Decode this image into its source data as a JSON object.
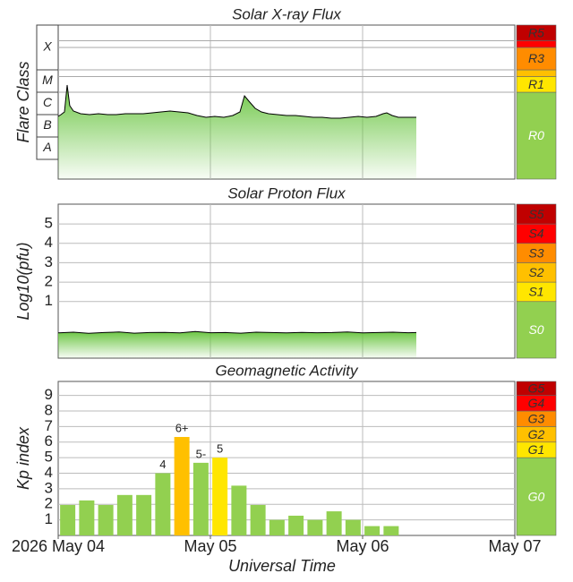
{
  "chart_data": [
    {
      "type": "line",
      "title": "Solar X-ray Flux",
      "ylabel": "Flare Class",
      "area": true,
      "threshold_lines": true,
      "xlim": [
        0,
        3
      ],
      "xgrid": [
        1,
        2
      ],
      "ylim": [
        -8.88,
        -2
      ],
      "color": "#000000",
      "fill_color": "#6cc644",
      "class_bands": [
        {
          "label": "A",
          "from": -8,
          "to": -7
        },
        {
          "label": "B",
          "from": -7,
          "to": -6
        },
        {
          "label": "C",
          "from": -6,
          "to": -5
        },
        {
          "label": "M",
          "from": -5,
          "to": -4
        },
        {
          "label": "X",
          "from": -4,
          "to": -2
        }
      ],
      "scale": [
        {
          "label": "R0",
          "from": -8.88,
          "to": -5,
          "color": "#92d050"
        },
        {
          "label": "R1",
          "from": -5,
          "to": -4.3,
          "color": "#ffe600"
        },
        {
          "label": null,
          "from": -4.3,
          "to": -4,
          "color": "#ffc000"
        },
        {
          "label": "R3",
          "from": -4,
          "to": -3,
          "color": "#ff8c00"
        },
        {
          "label": null,
          "from": -3,
          "to": -2.7,
          "color": "#ff0000"
        },
        {
          "label": "R5",
          "from": -2.7,
          "to": -2,
          "color": "#c00000"
        }
      ],
      "x": [
        0,
        0.018,
        0.041,
        0.059,
        0.076,
        0.1,
        0.147,
        0.206,
        0.265,
        0.324,
        0.382,
        0.441,
        0.5,
        0.559,
        0.618,
        0.676,
        0.735,
        0.794,
        0.853,
        0.912,
        0.971,
        1.029,
        1.088,
        1.147,
        1.194,
        1.224,
        1.253,
        1.294,
        1.335,
        1.382,
        1.441,
        1.5,
        1.559,
        1.618,
        1.676,
        1.735,
        1.794,
        1.853,
        1.912,
        1.971,
        2.029,
        2.088,
        2.135,
        2.159,
        2.194,
        2.235,
        2.294,
        2.353
      ],
      "values": [
        -6.08,
        -6.0,
        -5.88,
        -4.68,
        -5.6,
        -5.84,
        -5.96,
        -6.0,
        -5.96,
        -6.0,
        -6.0,
        -5.96,
        -5.96,
        -5.96,
        -5.92,
        -5.88,
        -5.84,
        -5.88,
        -5.92,
        -6.04,
        -6.12,
        -6.08,
        -6.12,
        -6.04,
        -5.88,
        -5.16,
        -5.4,
        -5.72,
        -5.88,
        -5.96,
        -6.0,
        -6.04,
        -6.04,
        -6.08,
        -6.12,
        -6.12,
        -6.16,
        -6.16,
        -6.12,
        -6.08,
        -6.12,
        -6.08,
        -5.96,
        -5.92,
        -6.04,
        -6.12,
        -6.12,
        -6.12
      ]
    },
    {
      "type": "line",
      "title": "Solar Proton Flux",
      "ylabel": "Log10(pfu)",
      "area": true,
      "xlim": [
        0,
        3
      ],
      "xgrid": [
        1,
        2
      ],
      "ylim": [
        -1.92,
        6.02
      ],
      "yticks": [
        1,
        2,
        3,
        4,
        5
      ],
      "grid": true,
      "color": "#000000",
      "fill_color": "#6cc644",
      "scale": [
        {
          "label": "S0",
          "from": -1.92,
          "to": 1,
          "color": "#92d050"
        },
        {
          "label": "S1",
          "from": 1,
          "to": 2,
          "color": "#ffe600"
        },
        {
          "label": "S2",
          "from": 2,
          "to": 3,
          "color": "#ffc000"
        },
        {
          "label": "S3",
          "from": 3,
          "to": 4,
          "color": "#ff8c00"
        },
        {
          "label": "S4",
          "from": 4,
          "to": 5,
          "color": "#ff0000"
        },
        {
          "label": "S5",
          "from": 5,
          "to": 6.02,
          "color": "#c00000"
        }
      ],
      "x": [
        0,
        0.1,
        0.2,
        0.3,
        0.4,
        0.5,
        0.6,
        0.7,
        0.8,
        0.9,
        1.0,
        1.1,
        1.2,
        1.3,
        1.4,
        1.5,
        1.6,
        1.7,
        1.8,
        1.9,
        2.0,
        2.1,
        2.2,
        2.3,
        2.353
      ],
      "values": [
        -0.62,
        -0.58,
        -0.64,
        -0.6,
        -0.57,
        -0.63,
        -0.6,
        -0.59,
        -0.62,
        -0.55,
        -0.61,
        -0.6,
        -0.63,
        -0.58,
        -0.6,
        -0.62,
        -0.59,
        -0.61,
        -0.6,
        -0.57,
        -0.62,
        -0.6,
        -0.58,
        -0.61,
        -0.6
      ]
    },
    {
      "type": "bar",
      "title": "Geomagnetic Activity",
      "ylabel": "Kp index",
      "xlabel": "Universal Time",
      "xlim": [
        0,
        3
      ],
      "xgrid": [
        1,
        2
      ],
      "ylim": [
        0,
        9.9
      ],
      "yticks": [
        1,
        2,
        3,
        4,
        5,
        6,
        7,
        8,
        9
      ],
      "grid": true,
      "xticks": [
        {
          "value": 0,
          "label": "2026 May 04"
        },
        {
          "value": 1,
          "label": "May 05"
        },
        {
          "value": 2,
          "label": "May 06"
        },
        {
          "value": 3,
          "label": "May 07"
        }
      ],
      "scale": [
        {
          "label": "G0",
          "from": 0,
          "to": 5,
          "color": "#92d050"
        },
        {
          "label": "G1",
          "from": 5,
          "to": 6,
          "color": "#ffe600"
        },
        {
          "label": "G2",
          "from": 6,
          "to": 7,
          "color": "#ffc000"
        },
        {
          "label": "G3",
          "from": 7,
          "to": 8,
          "color": "#ff8c00"
        },
        {
          "label": "G4",
          "from": 8,
          "to": 9,
          "color": "#ff0000"
        },
        {
          "label": "G5",
          "from": 9,
          "to": 9.9,
          "color": "#c00000"
        }
      ],
      "x": [
        0.0625,
        0.1875,
        0.3125,
        0.4375,
        0.5625,
        0.6875,
        0.8125,
        0.9375,
        1.0625,
        1.1875,
        1.3125,
        1.4375,
        1.5625,
        1.6875,
        1.8125,
        1.9375,
        2.0625,
        2.1875
      ],
      "values": [
        1.96,
        2.25,
        1.96,
        2.6,
        2.6,
        4,
        6.33,
        4.67,
        5,
        3.2,
        1.96,
        1.0,
        1.27,
        1.0,
        1.55,
        1.0,
        0.6,
        0.6
      ],
      "value_labels": [
        null,
        null,
        null,
        null,
        null,
        "4",
        "6+",
        "5-",
        "5",
        null,
        null,
        null,
        null,
        null,
        null,
        null,
        null,
        null
      ],
      "colors": [
        "#92d050",
        "#92d050",
        "#92d050",
        "#92d050",
        "#92d050",
        "#92d050",
        "#ffc000",
        "#92d050",
        "#ffe600",
        "#92d050",
        "#92d050",
        "#92d050",
        "#92d050",
        "#92d050",
        "#92d050",
        "#92d050",
        "#92d050",
        "#92d050"
      ]
    }
  ]
}
